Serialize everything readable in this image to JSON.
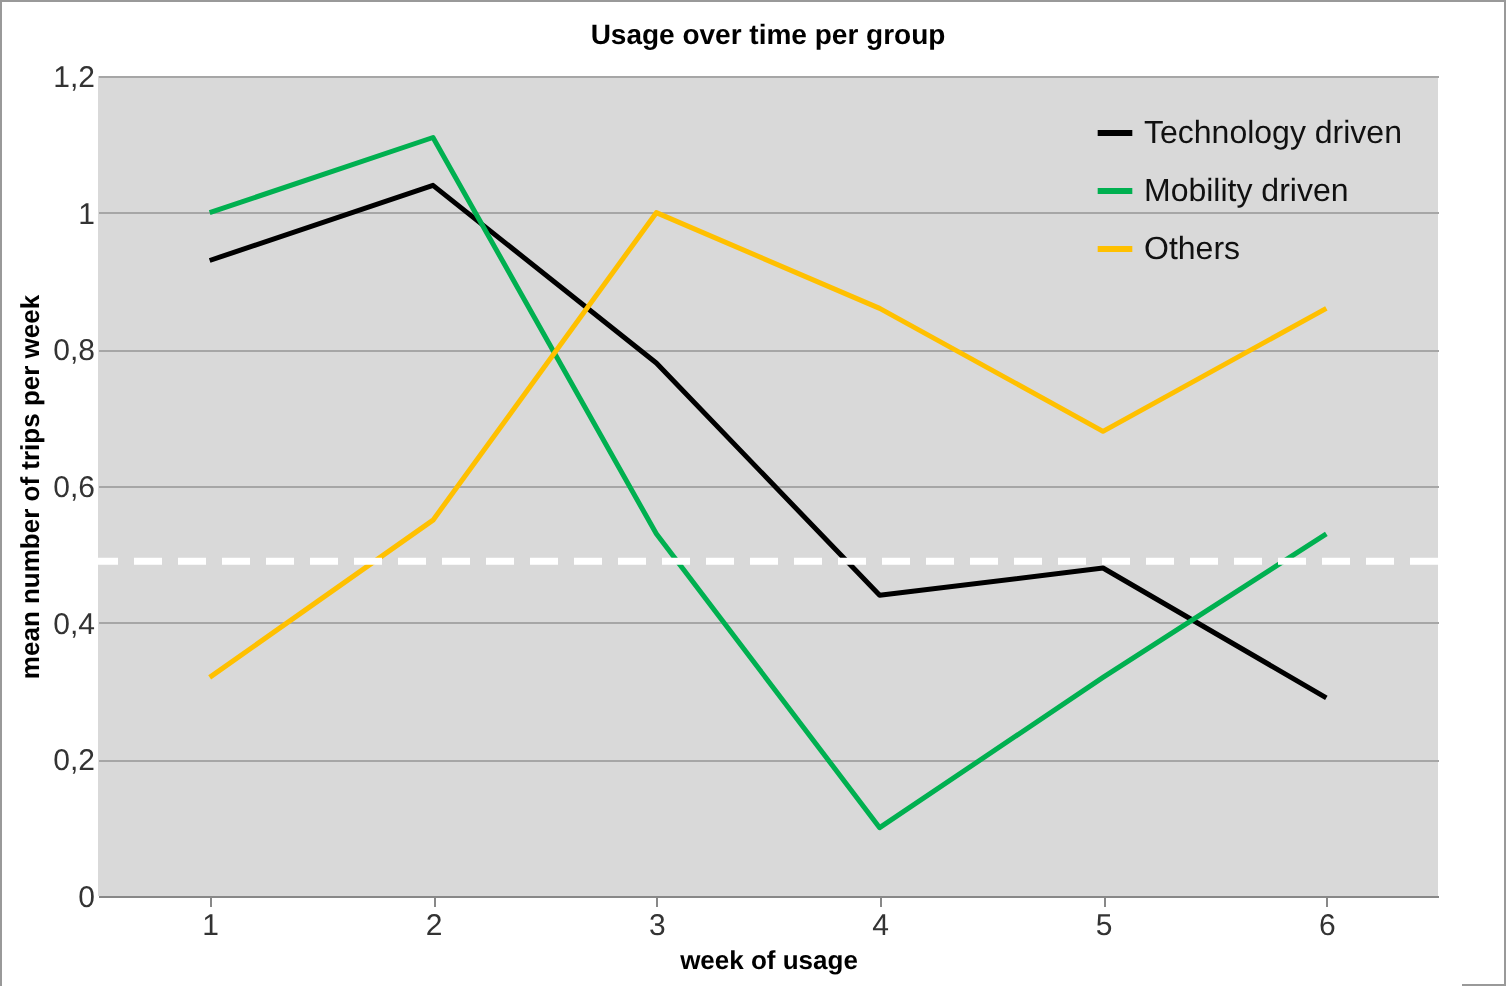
{
  "chart_data": {
    "type": "line",
    "title": "Usage over time per group",
    "xlabel": "week of usage",
    "ylabel": "mean number of trips per week",
    "categories": [
      "1",
      "2",
      "3",
      "4",
      "5",
      "6"
    ],
    "series": [
      {
        "name": "Technology driven",
        "color": "#000000",
        "values": [
          0.93,
          1.04,
          0.78,
          0.44,
          0.48,
          0.29
        ]
      },
      {
        "name": "Mobility driven",
        "color": "#00b050",
        "values": [
          1.0,
          1.11,
          0.53,
          0.1,
          0.32,
          0.53
        ]
      },
      {
        "name": "Others",
        "color": "#ffc000",
        "values": [
          0.32,
          0.55,
          1.0,
          0.86,
          0.68,
          0.86
        ]
      }
    ],
    "ylim": [
      0,
      1.2
    ],
    "yticks": [
      {
        "value": 0,
        "label": "0"
      },
      {
        "value": 0.2,
        "label": "0,2"
      },
      {
        "value": 0.4,
        "label": "0,4"
      },
      {
        "value": 0.6,
        "label": "0,6"
      },
      {
        "value": 0.8,
        "label": "0,8"
      },
      {
        "value": 1,
        "label": "1"
      },
      {
        "value": 1.2,
        "label": "1,2"
      }
    ],
    "ref_lines": [
      {
        "axis": "y",
        "value": 0.49,
        "color": "#ffffff",
        "line_style": "dashed"
      }
    ],
    "grid": "y",
    "legend": "top right",
    "line_style": "solid",
    "marker": "none"
  }
}
